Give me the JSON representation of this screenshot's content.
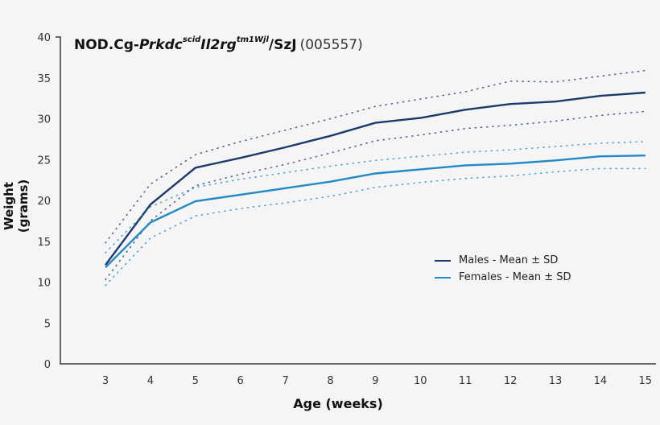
{
  "title": {
    "strain_prefix": "NOD.Cg-",
    "gene1": "Prkdc",
    "gene1_sup": "scid",
    "gene2": "Il2rg",
    "gene2_sup": "tm1Wjl",
    "suffix": "/SzJ",
    "stock_code": "(005557)"
  },
  "colors": {
    "males": "#1c3a6b",
    "females": "#1f8ac6",
    "axis": "#666666",
    "background": "#f5f5f5"
  },
  "legend": [
    {
      "label": "Males - Mean ± SD",
      "color": "#1c3a6b"
    },
    {
      "label": "Females - Mean ± SD",
      "color": "#1f8ac6"
    }
  ],
  "chart_data": {
    "type": "line",
    "title": "NOD.Cg-Prkdc(scid) Il2rg(tm1Wjl)/SzJ (005557)",
    "xlabel": "Age (weeks)",
    "ylabel": "Weight (grams)",
    "x": [
      3,
      4,
      5,
      6,
      7,
      8,
      9,
      10,
      11,
      12,
      13,
      14,
      15
    ],
    "xlim": [
      2,
      15
    ],
    "ylim": [
      0,
      40
    ],
    "yticks": [
      0,
      5,
      10,
      15,
      20,
      25,
      30,
      35,
      40
    ],
    "xticks": [
      3,
      4,
      5,
      6,
      7,
      8,
      9,
      10,
      11,
      12,
      13,
      14,
      15
    ],
    "grid": false,
    "legend_position": "center-right",
    "series": [
      {
        "name": "Males - Mean",
        "style": "solid",
        "color": "#1c3a6b",
        "values": [
          12.1,
          19.5,
          24.0,
          25.2,
          26.5,
          27.9,
          29.5,
          30.1,
          31.1,
          31.8,
          32.1,
          32.8,
          33.2
        ]
      },
      {
        "name": "Males - Mean + SD",
        "style": "dotted",
        "color": "#1c3a6b",
        "values": [
          14.8,
          22.0,
          25.6,
          27.2,
          28.6,
          30.0,
          31.5,
          32.4,
          33.3,
          34.6,
          34.5,
          35.2,
          35.9
        ]
      },
      {
        "name": "Males - Mean - SD",
        "style": "dotted",
        "color": "#1c3a6b",
        "values": [
          10.3,
          17.5,
          21.8,
          23.2,
          24.4,
          25.8,
          27.3,
          28.0,
          28.8,
          29.2,
          29.7,
          30.4,
          30.9
        ]
      },
      {
        "name": "Females - Mean",
        "style": "solid",
        "color": "#1f8ac6",
        "values": [
          11.8,
          17.3,
          19.9,
          20.7,
          21.5,
          22.3,
          23.3,
          23.8,
          24.3,
          24.5,
          24.9,
          25.4,
          25.5
        ]
      },
      {
        "name": "Females - Mean + SD",
        "style": "dotted",
        "color": "#1f8ac6",
        "values": [
          13.6,
          19.2,
          21.6,
          22.6,
          23.4,
          24.2,
          24.9,
          25.4,
          25.9,
          26.2,
          26.6,
          27.0,
          27.2
        ]
      },
      {
        "name": "Females - Mean - SD",
        "style": "dotted",
        "color": "#1f8ac6",
        "values": [
          9.6,
          15.4,
          18.1,
          19.0,
          19.7,
          20.5,
          21.6,
          22.2,
          22.7,
          23.0,
          23.5,
          23.9,
          23.9
        ]
      }
    ]
  },
  "axes": {
    "xlabel": "Age (weeks)",
    "ylabel": "Weight (grams)"
  }
}
